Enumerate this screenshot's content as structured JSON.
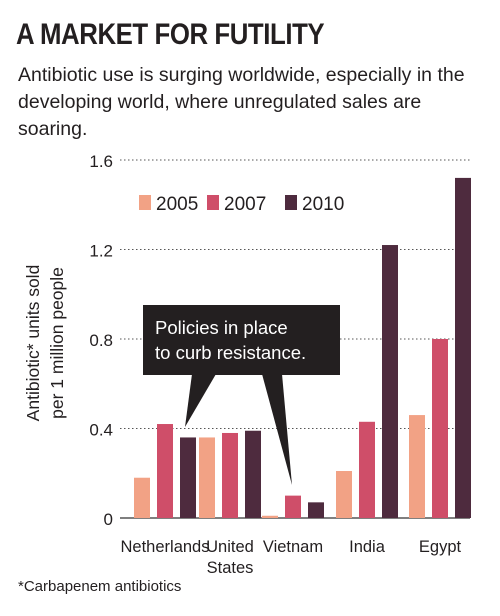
{
  "title": "A MARKET FOR FUTILITY",
  "subtitle": "Antibiotic use is surging worldwide, especially in the developing world, where unregulated sales are soaring.",
  "footnote": "*Carbapenem antibiotics",
  "callout": [
    "Policies in place",
    "to curb resistance."
  ],
  "colors": {
    "2005": "#f2a285",
    "2007": "#cf4e69",
    "2010": "#4e2b3e",
    "callout": "#231f20",
    "grid": "#555555"
  },
  "chart_data": {
    "type": "bar",
    "title": "A MARKET FOR FUTILITY",
    "ylabel_lines": [
      "Antibiotic* units sold",
      "per 1 million people"
    ],
    "ylim": [
      0,
      1.6
    ],
    "yticks": [
      0,
      0.4,
      0.8,
      1.2,
      1.6
    ],
    "ytick_labels": [
      "0",
      "0.4",
      "0.8",
      "1.2",
      "1.6"
    ],
    "grid": "horizontal dotted",
    "legend": "top-left",
    "categories": [
      {
        "lines": [
          "Netherlands"
        ]
      },
      {
        "lines": [
          "United",
          "States"
        ]
      },
      {
        "lines": [
          "Vietnam"
        ]
      },
      {
        "lines": [
          "India"
        ]
      },
      {
        "lines": [
          "Egypt"
        ]
      }
    ],
    "series": [
      {
        "name": "2005",
        "values": [
          0.18,
          0.36,
          0.01,
          0.21,
          0.46
        ]
      },
      {
        "name": "2007",
        "values": [
          0.42,
          0.38,
          0.1,
          0.43,
          0.8
        ]
      },
      {
        "name": "2010",
        "values": [
          0.36,
          0.39,
          0.07,
          1.22,
          1.52
        ]
      }
    ],
    "annotation": "Policies in place to curb resistance."
  }
}
